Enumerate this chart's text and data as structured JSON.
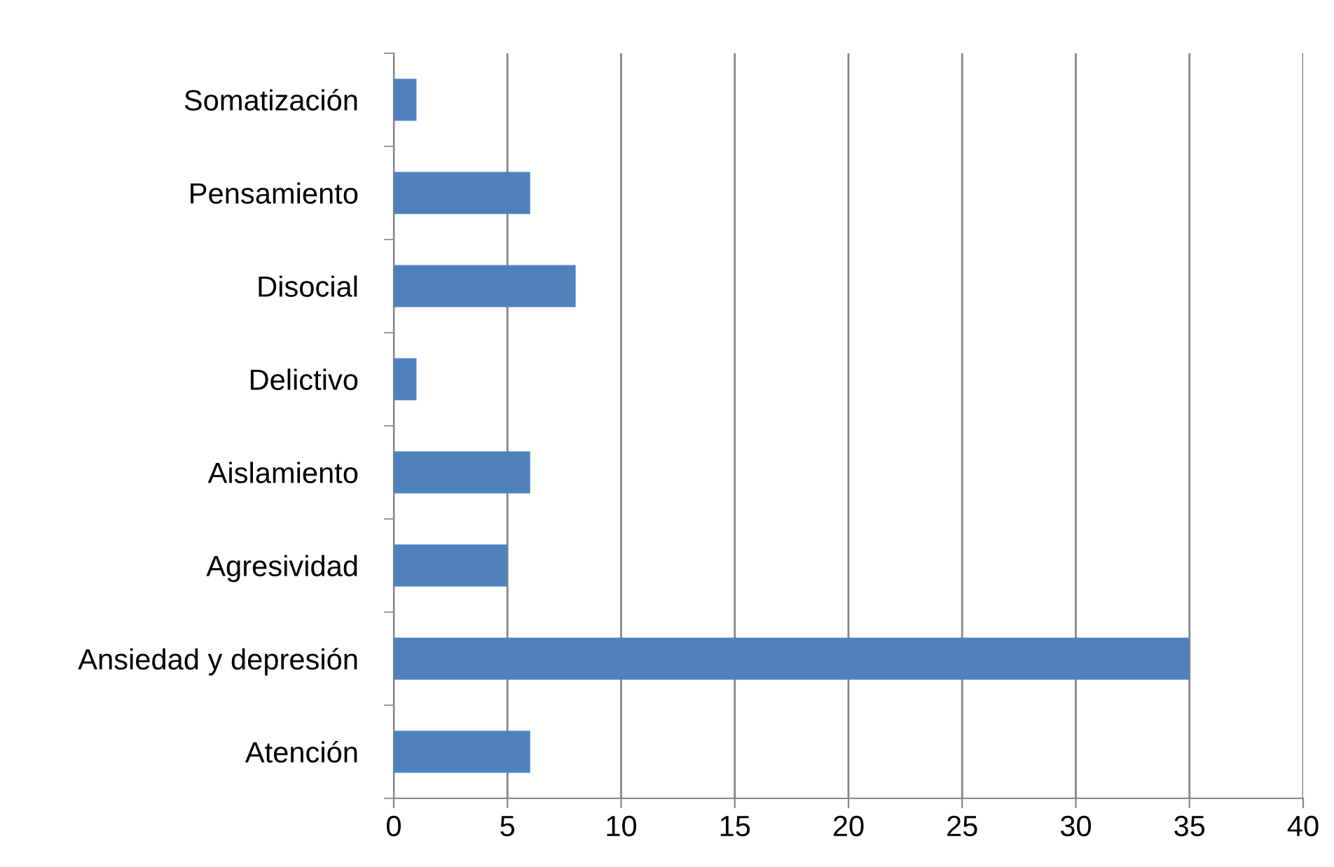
{
  "chart_data": {
    "type": "bar",
    "orientation": "horizontal",
    "categories": [
      "Somatización",
      "Pensamiento",
      "Disocial",
      "Delictivo",
      "Aislamiento",
      "Agresividad",
      "Ansiedad y depresión",
      "Atención"
    ],
    "values": [
      1,
      6,
      8,
      1,
      6,
      5,
      35,
      6
    ],
    "color": "#4f81bd",
    "xlim": [
      0,
      40
    ],
    "xticks": [
      0,
      5,
      10,
      15,
      20,
      25,
      30,
      35,
      40
    ],
    "grid": "x",
    "legend": false
  }
}
